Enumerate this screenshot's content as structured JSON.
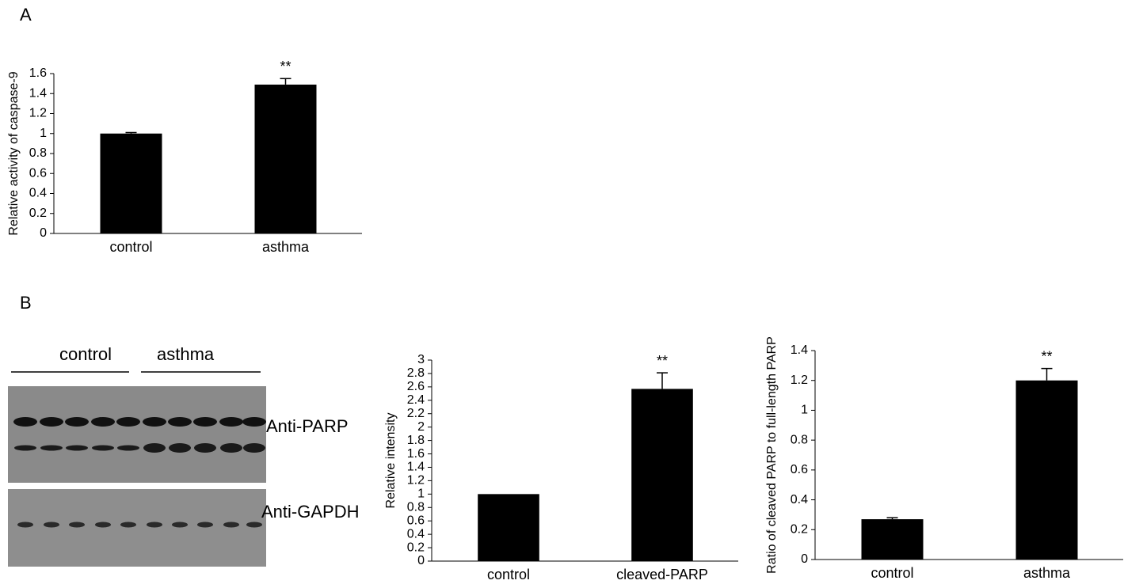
{
  "panels": {
    "a": "A",
    "b": "B"
  },
  "blot": {
    "groups": [
      "control",
      "asthma"
    ],
    "labels": [
      "Anti-PARP",
      "Anti-GAPDH"
    ]
  },
  "chart_data": [
    {
      "type": "bar",
      "ylabel": "Relative activity of caspase-9",
      "categories": [
        "control",
        "asthma"
      ],
      "values": [
        1.0,
        1.49
      ],
      "errors": [
        0.01,
        0.06
      ],
      "significance": [
        null,
        "**"
      ],
      "color": "#000000",
      "ylim": [
        0,
        1.6
      ],
      "yticks": [
        0,
        0.2,
        0.4,
        0.6,
        0.8,
        1,
        1.2,
        1.4,
        1.6
      ]
    },
    {
      "type": "bar",
      "ylabel": "Relative intensity",
      "categories": [
        "control",
        "cleaved-PARP"
      ],
      "values": [
        1.0,
        2.57
      ],
      "errors": [
        null,
        0.24
      ],
      "significance": [
        null,
        "**"
      ],
      "color": "#000000",
      "ylim": [
        0,
        3
      ],
      "yticks": [
        0,
        0.2,
        0.4,
        0.6,
        0.8,
        1,
        1.2,
        1.4,
        1.6,
        1.8,
        2,
        2.2,
        2.4,
        2.6,
        2.8,
        3
      ]
    },
    {
      "type": "bar",
      "ylabel": "Ratio of cleaved PARP to full-length PARP",
      "categories": [
        "control",
        "asthma"
      ],
      "values": [
        0.27,
        1.2
      ],
      "errors": [
        0.01,
        0.08
      ],
      "significance": [
        null,
        "**"
      ],
      "color": "#000000",
      "ylim": [
        0,
        1.4
      ],
      "yticks": [
        0,
        0.2,
        0.4,
        0.6,
        0.8,
        1,
        1.2,
        1.4
      ]
    }
  ]
}
